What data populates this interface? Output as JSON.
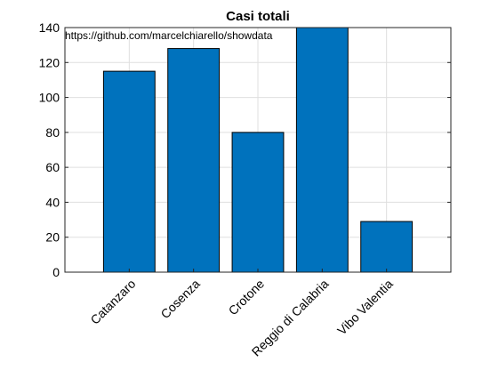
{
  "chart_data": {
    "type": "bar",
    "title": "Casi totali",
    "annotation": "https://github.com/marcelchiarello/showdata",
    "categories": [
      "Catanzaro",
      "Cosenza",
      "Crotone",
      "Reggio di Calabria",
      "Vibo Valentia"
    ],
    "values": [
      115,
      128,
      80,
      140,
      29
    ],
    "xlabel": "",
    "ylabel": "",
    "ylim": [
      0,
      140
    ],
    "yticks": [
      0,
      20,
      40,
      60,
      80,
      100,
      120,
      140
    ],
    "grid": true,
    "bar_color": "#0072bd",
    "bar_edge_color": "#000000",
    "grid_color": "#dfdfdf",
    "axis_color": "#262626"
  }
}
